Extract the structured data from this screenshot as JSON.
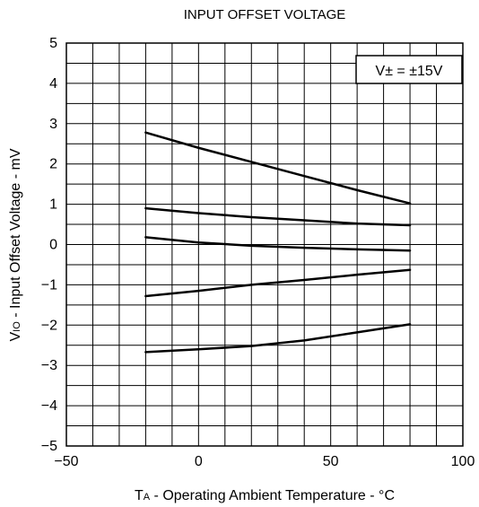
{
  "chart_data": {
    "type": "line",
    "title": "INPUT OFFSET VOLTAGE",
    "xlabel": {
      "main": "T",
      "sub": "A",
      "rest": " - Operating Ambient Temperature - °C"
    },
    "ylabel": {
      "main": "V",
      "sub": "IO",
      "rest": " - Input Offset Voltage - mV"
    },
    "xlim": [
      -50,
      100
    ],
    "ylim": [
      -5,
      5
    ],
    "x_ticks": [
      "−50",
      "0",
      "50",
      "100"
    ],
    "x_tick_values": [
      -50,
      0,
      50,
      100
    ],
    "y_ticks": [
      "5",
      "4",
      "3",
      "2",
      "1",
      "0",
      "−1",
      "−2",
      "−3",
      "−4",
      "−5"
    ],
    "y_tick_values": [
      5,
      4,
      3,
      2,
      1,
      0,
      -1,
      -2,
      -3,
      -4,
      -5
    ],
    "x_minor_step": 10,
    "y_minor_step": 0.5,
    "grid": true,
    "legend_text": "V± = ±15V",
    "legend_position": "top-right",
    "series": [
      {
        "x": [
          -20,
          0,
          20,
          40,
          60,
          80
        ],
        "y": [
          2.78,
          2.4,
          2.05,
          1.7,
          1.35,
          1.02
        ]
      },
      {
        "x": [
          -20,
          0,
          20,
          40,
          60,
          80
        ],
        "y": [
          0.9,
          0.78,
          0.68,
          0.6,
          0.52,
          0.48
        ]
      },
      {
        "x": [
          -20,
          0,
          20,
          40,
          60,
          80
        ],
        "y": [
          0.18,
          0.05,
          -0.03,
          -0.08,
          -0.12,
          -0.15
        ]
      },
      {
        "x": [
          -20,
          0,
          20,
          40,
          60,
          80
        ],
        "y": [
          -1.28,
          -1.15,
          -1.0,
          -0.88,
          -0.75,
          -0.63
        ]
      },
      {
        "x": [
          -20,
          0,
          20,
          40,
          60,
          80
        ],
        "y": [
          -2.67,
          -2.6,
          -2.52,
          -2.38,
          -2.18,
          -1.98
        ]
      }
    ]
  }
}
